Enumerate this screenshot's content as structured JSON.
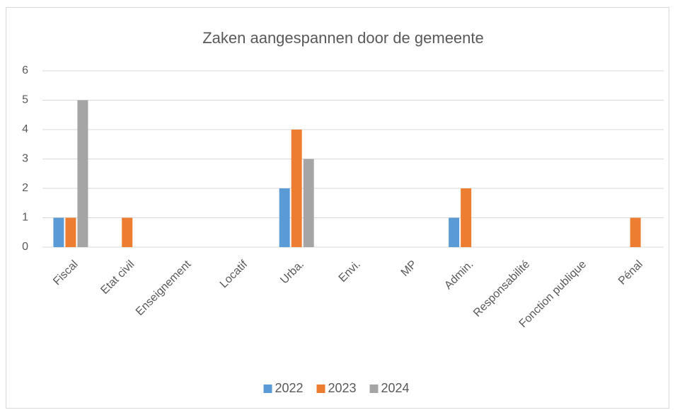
{
  "chart_data": {
    "type": "bar",
    "title": "Zaken aangespannen door de gemeente",
    "categories": [
      "Fiscal",
      "Etat civil",
      "Enseignement",
      "Locatif",
      "Urba.",
      "Envi.",
      "MP",
      "Admin.",
      "Responsabilité",
      "Fonction publique",
      "Pénal"
    ],
    "series": [
      {
        "name": "2022",
        "color": "#5b9bd5",
        "values": [
          1,
          0,
          0,
          0,
          2,
          0,
          0,
          1,
          0,
          0,
          0
        ]
      },
      {
        "name": "2023",
        "color": "#ed7d31",
        "values": [
          1,
          1,
          0,
          0,
          4,
          0,
          0,
          2,
          0,
          0,
          1
        ]
      },
      {
        "name": "2024",
        "color": "#a5a5a5",
        "values": [
          5,
          0,
          0,
          0,
          3,
          0,
          0,
          0,
          0,
          0,
          0
        ]
      }
    ],
    "ylim": [
      0,
      6
    ],
    "yticks": [
      0,
      1,
      2,
      3,
      4,
      5,
      6
    ],
    "grid": true,
    "legend": "bottom"
  }
}
